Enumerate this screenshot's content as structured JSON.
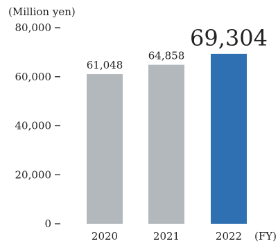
{
  "chart_data": {
    "type": "bar",
    "unit_label": "(Million yen)",
    "categories": [
      "2020",
      "2021",
      "2022"
    ],
    "values": [
      61048,
      64858,
      69304
    ],
    "value_labels": [
      "61,048",
      "64,858",
      "69,304"
    ],
    "x_unit_label": "(FY)",
    "ylim": [
      0,
      80000
    ],
    "y_ticks": [
      0,
      20000,
      40000,
      60000,
      80000
    ],
    "y_tick_labels": [
      "0",
      "20,000",
      "40,000",
      "60,000",
      "80,000"
    ],
    "grid": false,
    "highlight_index": 2,
    "colors": {
      "bar": "#b3b8bc",
      "highlight_bar": "#2f70b2",
      "text": "#222222"
    }
  }
}
